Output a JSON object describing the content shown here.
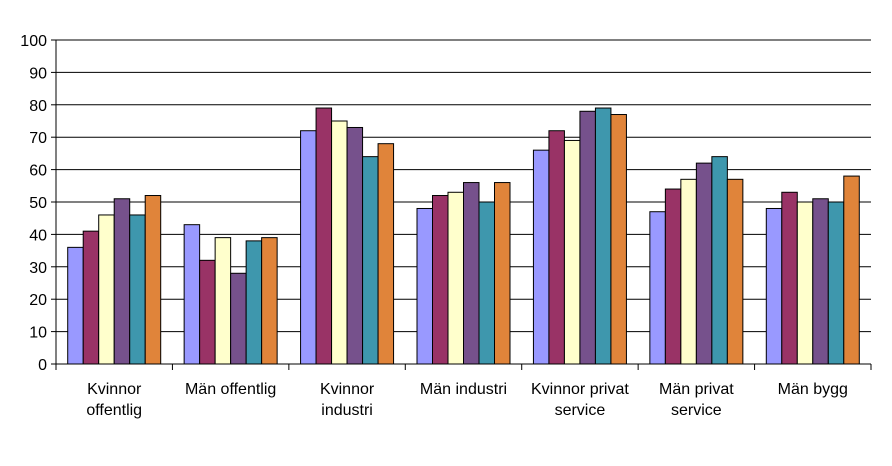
{
  "chart_data": {
    "type": "bar",
    "title": "",
    "xlabel": "",
    "ylabel": "",
    "ylim": [
      0,
      100
    ],
    "yticks": [
      "0",
      "10",
      "20",
      "30",
      "40",
      "50",
      "60",
      "70",
      "80",
      "90",
      "100"
    ],
    "grid": true,
    "legend": "none",
    "categories": [
      [
        "Kvinnor",
        "offentlig"
      ],
      [
        "Män offentlig"
      ],
      [
        "Kvinnor",
        "industri"
      ],
      [
        "Män industri"
      ],
      [
        "Kvinnor privat",
        "service"
      ],
      [
        "Män privat",
        "service"
      ],
      [
        "Män bygg"
      ]
    ],
    "series": [
      {
        "color": "#9999ff",
        "values": [
          36,
          43,
          72,
          48,
          66,
          47,
          48
        ]
      },
      {
        "color": "#993366",
        "values": [
          41,
          32,
          79,
          52,
          72,
          54,
          53
        ]
      },
      {
        "color": "#ffffcc",
        "values": [
          46,
          39,
          75,
          53,
          69,
          57,
          50
        ]
      },
      {
        "color": "#76518c",
        "values": [
          51,
          28,
          73,
          56,
          78,
          62,
          51
        ]
      },
      {
        "color": "#3e97ad",
        "values": [
          46,
          38,
          64,
          50,
          79,
          64,
          50
        ]
      },
      {
        "color": "#e0843a",
        "values": [
          52,
          39,
          68,
          56,
          77,
          57,
          58
        ]
      }
    ]
  }
}
